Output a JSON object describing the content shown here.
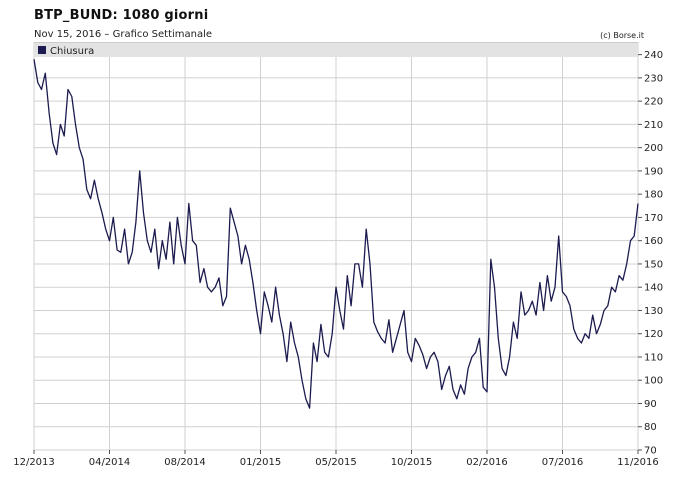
{
  "header": {
    "title": "BTP_BUND: 1080 giorni",
    "subtitle": "Nov 15, 2016 – Grafico Settimanale",
    "credit": "(c) Borse.it"
  },
  "chart_data": {
    "type": "line",
    "title": "BTP_BUND: 1080 giorni",
    "xlabel": "",
    "ylabel": "",
    "ylim": [
      70,
      245
    ],
    "y_ticks": [
      70,
      80,
      90,
      100,
      110,
      120,
      130,
      140,
      150,
      160,
      170,
      180,
      190,
      200,
      210,
      220,
      230,
      240
    ],
    "x_ticks": [
      "12/2013",
      "04/2014",
      "08/2014",
      "01/2015",
      "05/2015",
      "10/2015",
      "02/2016",
      "07/2016",
      "11/2016"
    ],
    "grid": true,
    "legend": "top-left",
    "series": [
      {
        "name": "Chiusura",
        "color": "#1b1b4f",
        "values": [
          238,
          228,
          225,
          232,
          215,
          202,
          197,
          210,
          205,
          225,
          222,
          210,
          200,
          195,
          182,
          178,
          186,
          178,
          172,
          165,
          160,
          170,
          156,
          155,
          165,
          150,
          155,
          168,
          190,
          172,
          160,
          155,
          165,
          148,
          160,
          152,
          168,
          150,
          170,
          158,
          150,
          176,
          160,
          158,
          142,
          148,
          140,
          138,
          140,
          144,
          132,
          136,
          174,
          168,
          162,
          150,
          158,
          152,
          142,
          130,
          120,
          138,
          132,
          125,
          140,
          128,
          120,
          108,
          125,
          116,
          110,
          100,
          92,
          88,
          116,
          108,
          124,
          112,
          110,
          120,
          140,
          130,
          122,
          145,
          132,
          150,
          150,
          140,
          165,
          150,
          125,
          121,
          118,
          116,
          126,
          112,
          118,
          124,
          130,
          112,
          108,
          118,
          115,
          111,
          105,
          110,
          112,
          108,
          96,
          102,
          106,
          96,
          92,
          98,
          94,
          105,
          110,
          112,
          118,
          97,
          95,
          152,
          140,
          118,
          105,
          102,
          110,
          125,
          118,
          138,
          128,
          130,
          134,
          128,
          142,
          130,
          145,
          134,
          140,
          162,
          138,
          136,
          132,
          122,
          118,
          116,
          120,
          118,
          128,
          120,
          124,
          130,
          132,
          140,
          138,
          145,
          143,
          150,
          160,
          162,
          176
        ]
      }
    ]
  }
}
